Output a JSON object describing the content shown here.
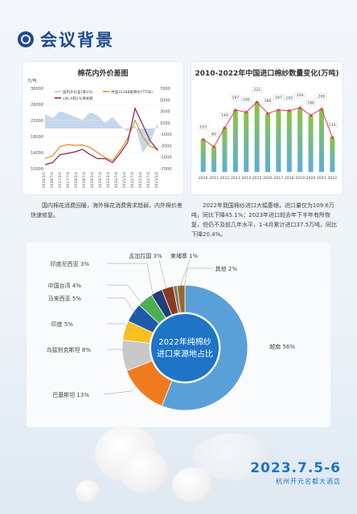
{
  "header": {
    "title": "会议背景"
  },
  "chart_data": [
    {
      "type": "line",
      "title": "棉花内外价差图",
      "ylabel_left": "元/吨",
      "yticks_left": [
        "30000",
        "26000",
        "22000",
        "18000",
        "14000",
        "10000"
      ],
      "yticks_right": [
        "7000",
        "5000",
        "3000",
        "1000",
        "-1000",
        "-3000",
        "-5000",
        "-7000"
      ],
      "legend": [
        "国内外价差(滑1%)",
        "中国3128B级棉价(TTEB)",
        "cdk.A指1%滑关税"
      ],
      "xticks": [
        "2016/1/1",
        "2016/7/1",
        "2017/1/1",
        "2017/7/1",
        "2018/1/1",
        "2018/7/1",
        "2019/1/1",
        "2019/7/1",
        "2020/1/1",
        "2020/7/1",
        "2021/1/1",
        "2021/7/1",
        "2022/1/1",
        "2022/7/1",
        "2023/1/1"
      ],
      "series": [
        {
          "name": "国内外价差(滑1%)",
          "values": [
            2500,
            1800,
            3000,
            2600,
            2000,
            1500,
            2800,
            2300,
            1000,
            2000,
            500,
            -500,
            600,
            -4200,
            -2500,
            1000
          ],
          "color": "#a9c4e3"
        },
        {
          "name": "中国3128B级棉价(TTEB)",
          "values": [
            12500,
            13200,
            15500,
            16000,
            15800,
            15900,
            15300,
            14000,
            12800,
            12000,
            14500,
            17500,
            22000,
            18000,
            15500,
            15000
          ],
          "color": "#e08a1e"
        },
        {
          "name": "cdk.A指1%滑关税",
          "values": [
            11000,
            11500,
            13500,
            13800,
            14200,
            14800,
            13500,
            12500,
            12500,
            11500,
            13800,
            16500,
            25000,
            21000,
            17000,
            14500
          ],
          "color": "#8b1e4a"
        }
      ]
    },
    {
      "type": "bar",
      "title": "2010-2022年中国进口棉纱数量变化(万吨)",
      "categories": [
        "2010",
        "2011",
        "2012",
        "2013",
        "2014",
        "2015",
        "2016",
        "2017",
        "2018",
        "2019",
        "2020",
        "2021",
        "2022"
      ],
      "values": [
        103,
        80,
        140,
        197,
        190,
        222,
        186,
        197,
        195,
        204,
        180,
        200,
        110
      ],
      "color": "#8cc63f"
    },
    {
      "type": "pie",
      "title": "2022年纯棉纱进口来源地占比",
      "categories": [
        "越南",
        "巴基斯坦",
        "乌兹别克斯坦",
        "印度",
        "马来西亚",
        "中国台湾",
        "印度尼西亚",
        "孟加拉国",
        "柬埔寨",
        "其他"
      ],
      "values": [
        56,
        13,
        8,
        5,
        5,
        4,
        3,
        3,
        1,
        2
      ],
      "colors": [
        "#5aa0d8",
        "#f07a1e",
        "#c8c8c8",
        "#f6c020",
        "#1e5aa8",
        "#4caf50",
        "#1e3f7a",
        "#8b3a1e",
        "#7a7a7a",
        "#9a6a2a"
      ]
    }
  ],
  "chart1": {
    "title": "棉花内外价差图",
    "unit": "元/吨",
    "legend": [
      "国内外价差(滑1%)",
      "中国3128B级棉价(TTEB)",
      "cdk.A指1%滑关税"
    ]
  },
  "chart2": {
    "title": "2010-2022年中国进口棉纱数量变化(万吨)"
  },
  "paragraph_left": "国内棉花消费回暖，海外棉花消费需求趋弱，内外棉价差快速修复。",
  "paragraph_right": "2022年我国棉纱进口大幅萎缩，进口量仅为109.6万吨，同比下降45.1%；2023年进口较去年下半年有所恢复，但仍不及前几年水平，1-4月累计进口37.5万吨，同比下降20.4%。",
  "donut": {
    "center_line1": "2022年纯棉纱",
    "center_line2": "进口来源地占比",
    "labels": [
      {
        "name": "越南",
        "pct": "56%"
      },
      {
        "name": "巴基斯坦",
        "pct": "13%"
      },
      {
        "name": "乌兹别克斯坦",
        "pct": "8%"
      },
      {
        "name": "印度",
        "pct": "5%"
      },
      {
        "name": "马来西亚",
        "pct": "5%"
      },
      {
        "name": "中国台湾",
        "pct": "4%"
      },
      {
        "name": "印度尼西亚",
        "pct": "3%"
      },
      {
        "name": "孟加拉国",
        "pct": "3%"
      },
      {
        "name": "柬埔寨",
        "pct": "1%"
      },
      {
        "name": "其他",
        "pct": "2%"
      }
    ]
  },
  "event": {
    "date": "2023.7.5-6",
    "place": "杭州开元名都大酒店"
  }
}
